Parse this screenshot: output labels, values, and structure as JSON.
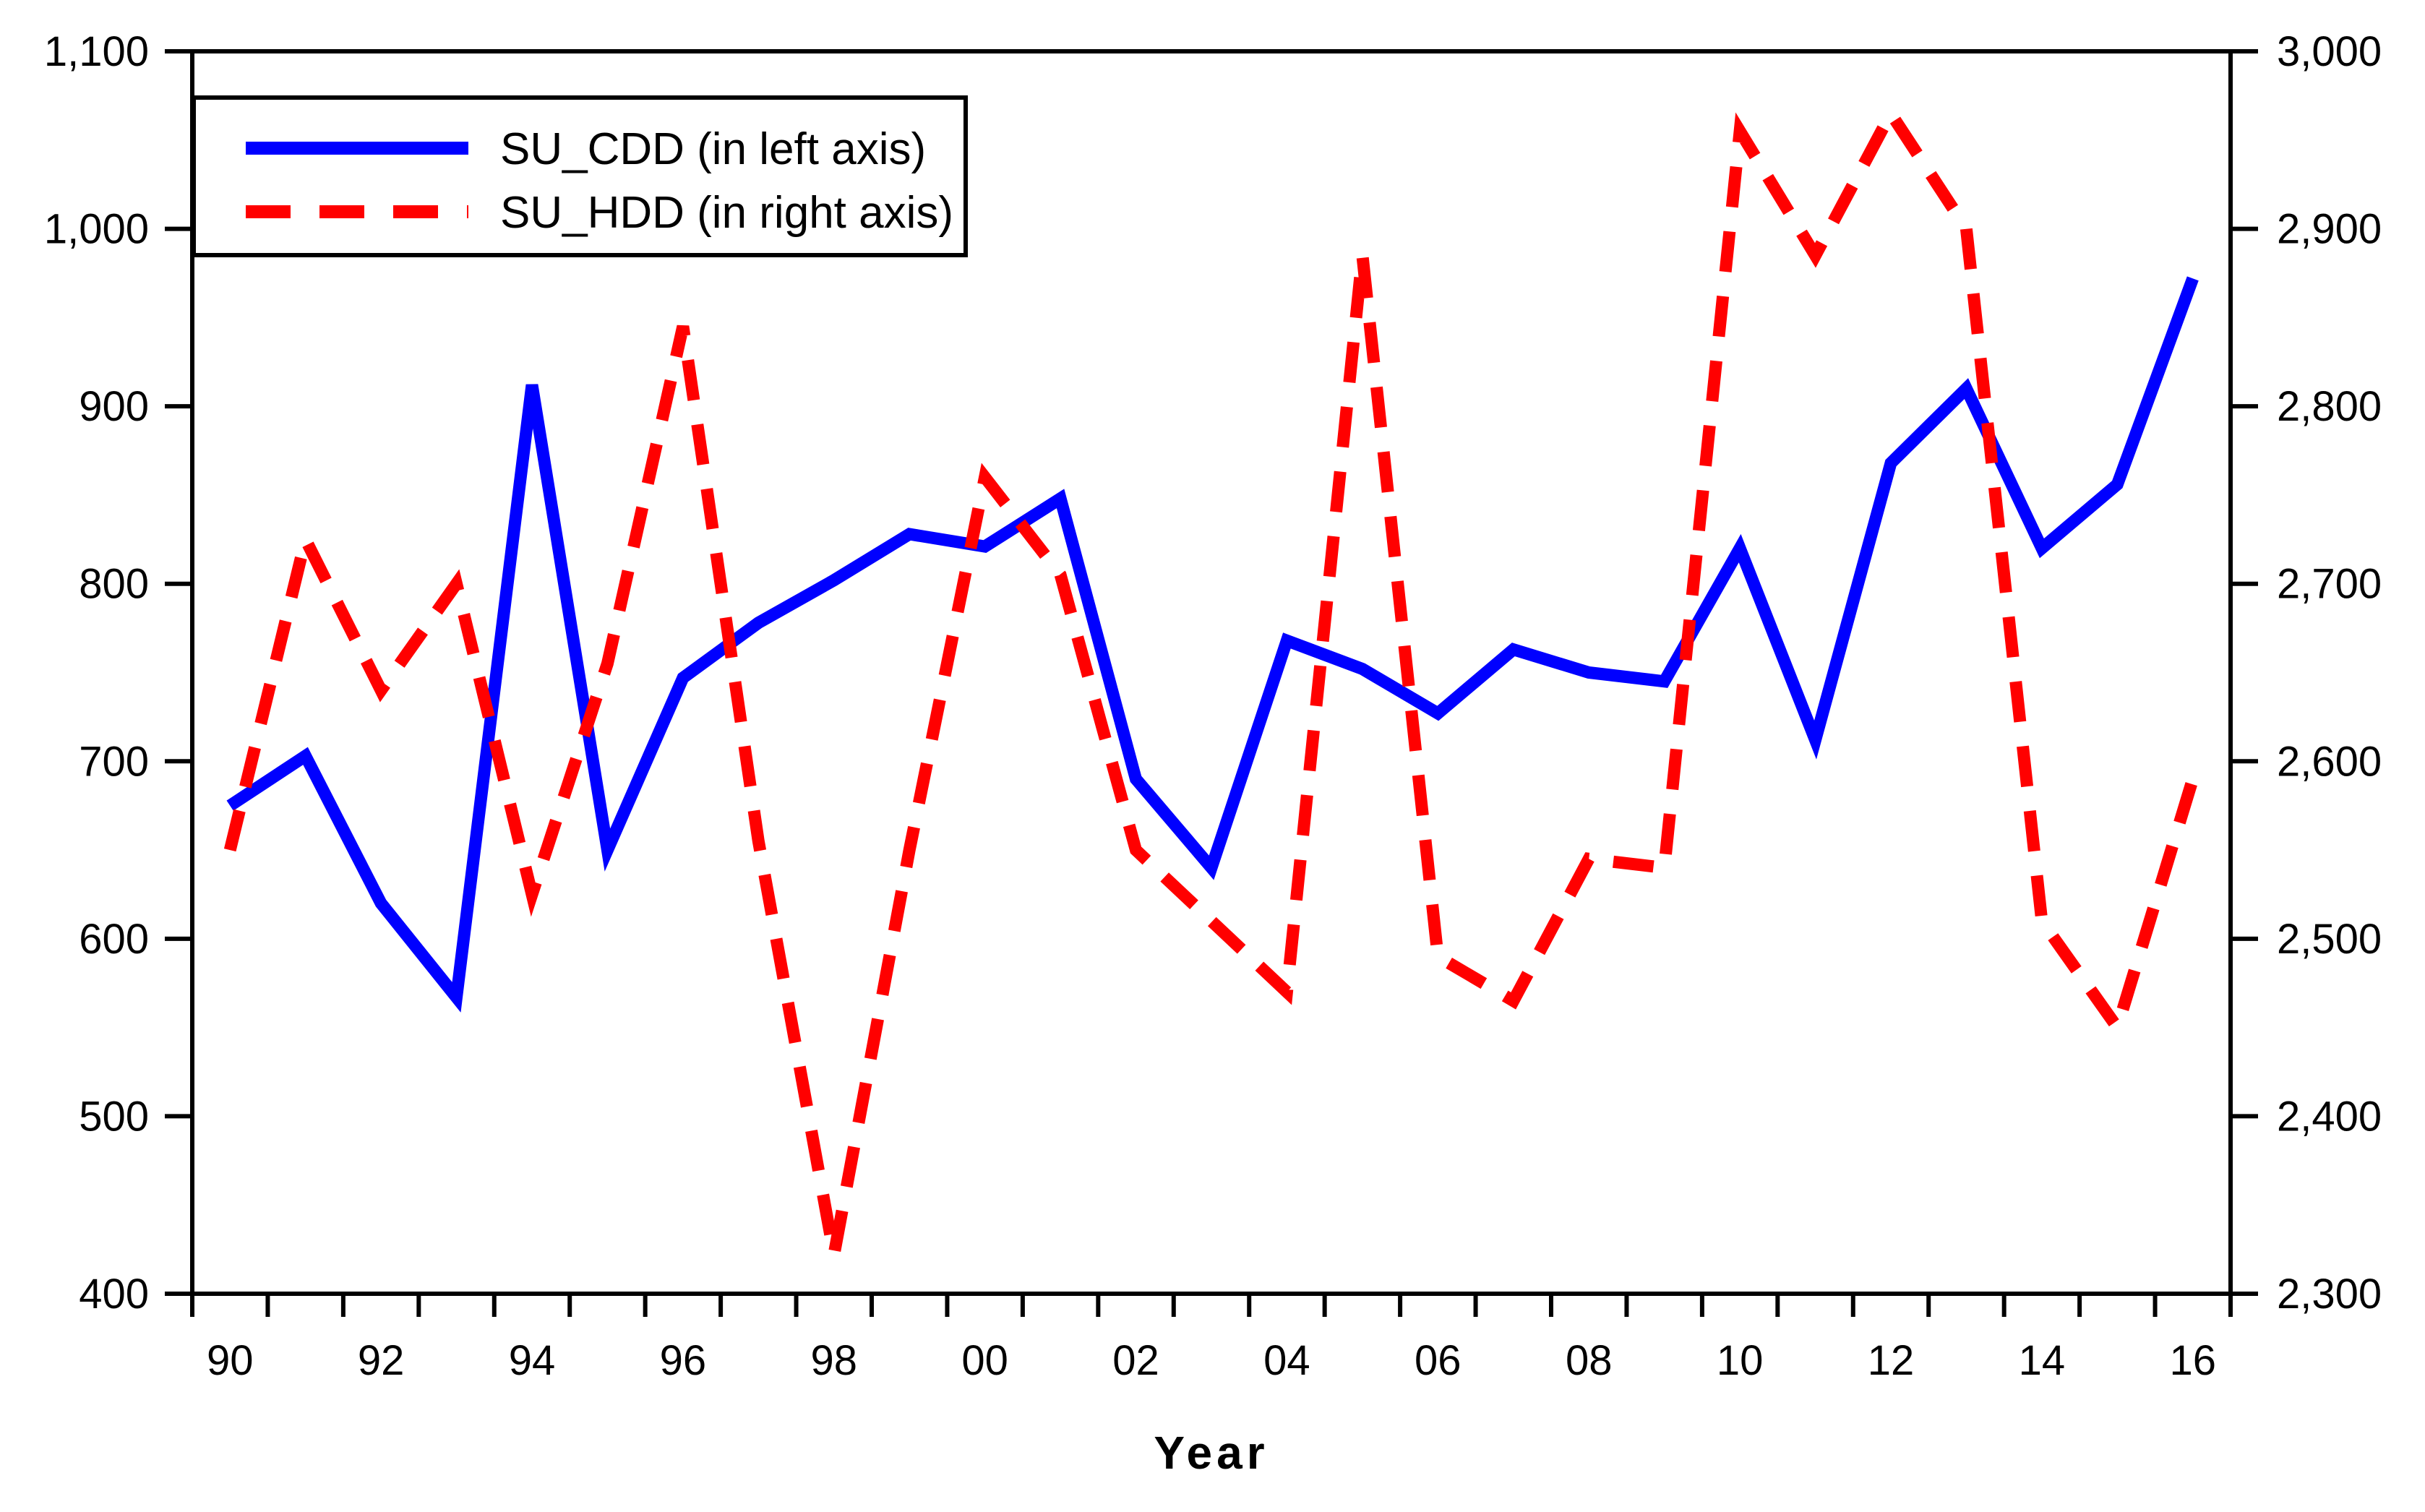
{
  "chart_data": {
    "type": "line",
    "title": "",
    "xlabel": "Year",
    "grid": false,
    "legend_position": "top-left",
    "x": [
      1990,
      1991,
      1992,
      1993,
      1994,
      1995,
      1996,
      1997,
      1998,
      1999,
      2000,
      2001,
      2002,
      2003,
      2004,
      2005,
      2006,
      2007,
      2008,
      2009,
      2010,
      2011,
      2012,
      2013,
      2014,
      2015,
      2016
    ],
    "x_tick_labels": [
      "90",
      "92",
      "94",
      "96",
      "98",
      "00",
      "02",
      "04",
      "06",
      "08",
      "10",
      "12",
      "14",
      "16"
    ],
    "x_tick_years": [
      1990,
      1992,
      1994,
      1996,
      1998,
      2000,
      2002,
      2004,
      2006,
      2008,
      2010,
      2012,
      2014,
      2016
    ],
    "left_axis": {
      "min": 400,
      "max": 1100,
      "tick_values": [
        1100,
        1000,
        900,
        800,
        700,
        600,
        500,
        400
      ],
      "tick_labels": [
        "1,100",
        "1,000",
        "900",
        "800",
        "700",
        "600",
        "500",
        "400"
      ]
    },
    "right_axis": {
      "min": 2300,
      "max": 3000,
      "tick_values": [
        3000,
        2900,
        2800,
        2700,
        2600,
        2500,
        2400,
        2300
      ],
      "tick_labels": [
        "3,000",
        "2,900",
        "2,800",
        "2,700",
        "2,600",
        "2,500",
        "2,400",
        "2,300"
      ]
    },
    "series": [
      {
        "name": "SU_CDD (in left axis)",
        "axis": "left",
        "color": "#0000ff",
        "style": "solid",
        "values": [
          675,
          703,
          620,
          567,
          912,
          650,
          747,
          778,
          802,
          828,
          821,
          848,
          690,
          640,
          768,
          752,
          727,
          763,
          750,
          745,
          820,
          712,
          868,
          910,
          820,
          856,
          972
        ]
      },
      {
        "name": "SU_HDD (in right axis)",
        "axis": "right",
        "color": "#ff0000",
        "style": "dashed",
        "values": [
          2550,
          2725,
          2640,
          2700,
          2525,
          2655,
          2845,
          2555,
          2322,
          2550,
          2760,
          2705,
          2550,
          2510,
          2470,
          2885,
          2490,
          2465,
          2545,
          2540,
          2955,
          2885,
          2965,
          2900,
          2510,
          2450,
          2590
        ]
      }
    ]
  },
  "legend": {
    "item1": "SU_CDD (in left axis)",
    "item2": "SU_HDD (in right axis)"
  },
  "axis_title": "Year"
}
